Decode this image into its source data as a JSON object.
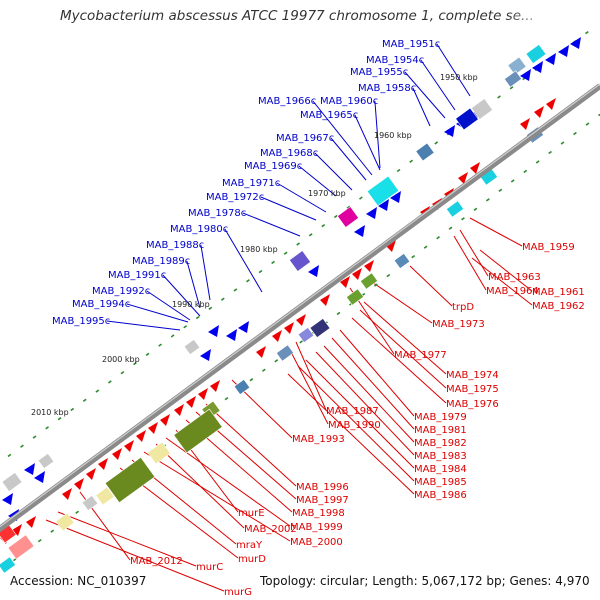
{
  "title": "Mycobacterium abscessus ATCC 19977 chromosome 1, complete se...",
  "footer": {
    "accession": "Accession: NC_010397",
    "summary": "Topology: circular; Length: 5,067,172 bp; Genes: 4,970"
  },
  "colors": {
    "backbone": "#8a8a8a",
    "forward_label": "#0000cc",
    "reverse_label": "#dd0000",
    "forward_arrow": "#0000ee",
    "reverse_arrow": "#ee0000",
    "tick": "#2e8b2e"
  },
  "kbp_ticks": [
    "1950 kbp",
    "1960 kbp",
    "1970 kbp",
    "1980 kbp",
    "1990 kbp",
    "2000 kbp",
    "2010 kbp"
  ],
  "forward_genes": [
    "MAB_1951c",
    "MAB_1954c",
    "MAB_1955c",
    "MAB_1958c",
    "MAB_1966c",
    "MAB_1960c",
    "MAB_1965c",
    "MAB_1967c",
    "MAB_1968c",
    "MAB_1969c",
    "MAB_1971c",
    "MAB_1972c",
    "MAB_1978c",
    "MAB_1980c",
    "MAB_1988c",
    "MAB_1989c",
    "MAB_1991c",
    "MAB_1992c",
    "MAB_1994c",
    "MAB_1995c"
  ],
  "reverse_genes": [
    "MAB_1959",
    "MAB_1963",
    "MAB_1964",
    "MAB_1961",
    "MAB_1962",
    "trpD",
    "MAB_1973",
    "MAB_1977",
    "MAB_1974",
    "MAB_1975",
    "MAB_1976",
    "MAB_1987",
    "MAB_1990",
    "MAB_1979",
    "MAB_1981",
    "MAB_1993",
    "MAB_1982",
    "MAB_1983",
    "MAB_1984",
    "MAB_1985",
    "MAB_1986",
    "MAB_1996",
    "MAB_1997",
    "MAB_1998",
    "murE",
    "MAB_1999",
    "MAB_2002",
    "MAB_2000",
    "mraY",
    "murD",
    "MAB_2012",
    "murC",
    "murG"
  ]
}
